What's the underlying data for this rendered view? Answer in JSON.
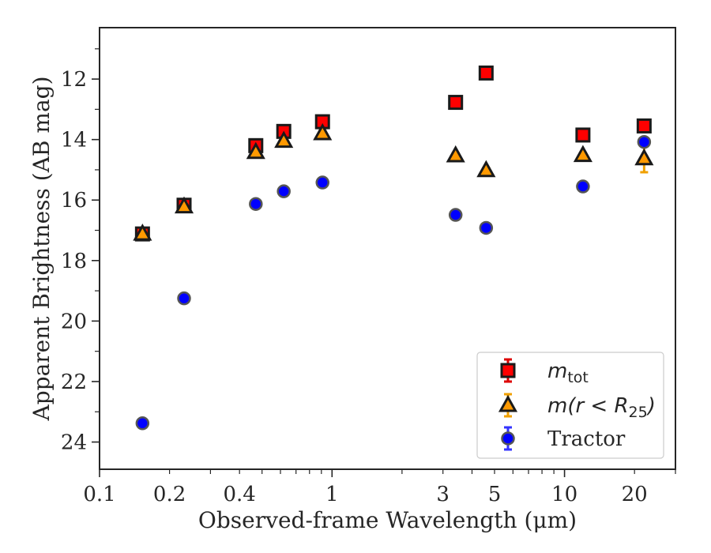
{
  "chart_data": {
    "type": "scatter",
    "title": "",
    "xlabel": "Observed-frame Wavelength (μm)",
    "ylabel": "Apparent Brightness (AB mag)",
    "xscale": "log",
    "yscale": "linear",
    "y_inverted": true,
    "xlim": [
      0.1,
      30
    ],
    "ylim": [
      24.9,
      10.3
    ],
    "xticks": [
      {
        "value": 0.1,
        "label": "0.1"
      },
      {
        "value": 0.2,
        "label": "0.2"
      },
      {
        "value": 0.4,
        "label": "0.4"
      },
      {
        "value": 1,
        "label": "1"
      },
      {
        "value": 3,
        "label": "3"
      },
      {
        "value": 5,
        "label": "5"
      },
      {
        "value": 10,
        "label": "10"
      },
      {
        "value": 20,
        "label": "20"
      }
    ],
    "yticks": [
      {
        "value": 12,
        "label": "12"
      },
      {
        "value": 14,
        "label": "14"
      },
      {
        "value": 16,
        "label": "16"
      },
      {
        "value": 18,
        "label": "18"
      },
      {
        "value": 20,
        "label": "20"
      },
      {
        "value": 22,
        "label": "22"
      },
      {
        "value": 24,
        "label": "24"
      }
    ],
    "grid": false,
    "legend_position": "lower-right",
    "series": [
      {
        "name": "m_tot",
        "legend_main": "m",
        "legend_sub": "tot",
        "marker": "square",
        "color": "#ff0000",
        "errorbar_color": "#dd0000",
        "edge_color": "#1a1a1a",
        "points": [
          {
            "x": 0.153,
            "y": 17.12,
            "err": 0.15
          },
          {
            "x": 0.231,
            "y": 16.17,
            "err": 0.12
          },
          {
            "x": 0.47,
            "y": 14.2,
            "err": 0.1
          },
          {
            "x": 0.62,
            "y": 13.73,
            "err": 0.1
          },
          {
            "x": 0.91,
            "y": 13.41,
            "err": 0.08
          },
          {
            "x": 3.4,
            "y": 12.77,
            "err": 0.08
          },
          {
            "x": 4.6,
            "y": 11.8,
            "err": 0.08
          },
          {
            "x": 12.0,
            "y": 13.85,
            "err": 0.08
          },
          {
            "x": 22.0,
            "y": 13.55,
            "err": 0.08
          }
        ]
      },
      {
        "name": "m(r < R_25)",
        "legend_main": "m(r < R",
        "legend_sub": "25",
        "legend_end": ")",
        "marker": "triangle",
        "color": "#ff9900",
        "errorbar_color": "#f0a000",
        "edge_color": "#1a1a1a",
        "points": [
          {
            "x": 0.153,
            "y": 17.12,
            "err": 0.1
          },
          {
            "x": 0.231,
            "y": 16.22,
            "err": 0.1
          },
          {
            "x": 0.47,
            "y": 14.42,
            "err": 0.08
          },
          {
            "x": 0.62,
            "y": 14.05,
            "err": 0.08
          },
          {
            "x": 0.91,
            "y": 13.8,
            "err": 0.08
          },
          {
            "x": 3.4,
            "y": 14.53,
            "err": 0.08
          },
          {
            "x": 4.6,
            "y": 15.02,
            "err": 0.08
          },
          {
            "x": 12.0,
            "y": 14.52,
            "err": 0.08
          },
          {
            "x": 22.0,
            "y": 14.63,
            "err": 0.45
          }
        ]
      },
      {
        "name": "Tractor",
        "legend_main": "Tractor",
        "marker": "circle",
        "color": "#0000ff",
        "errorbar_color": "#3333ff",
        "edge_color": "#555555",
        "points": [
          {
            "x": 0.153,
            "y": 23.38,
            "err": 0.05
          },
          {
            "x": 0.231,
            "y": 19.25,
            "err": 0.05
          },
          {
            "x": 0.47,
            "y": 16.13,
            "err": 0.05
          },
          {
            "x": 0.62,
            "y": 15.71,
            "err": 0.05
          },
          {
            "x": 0.91,
            "y": 15.42,
            "err": 0.05
          },
          {
            "x": 3.4,
            "y": 16.49,
            "err": 0.05
          },
          {
            "x": 4.6,
            "y": 16.92,
            "err": 0.05
          },
          {
            "x": 12.0,
            "y": 15.55,
            "err": 0.05
          },
          {
            "x": 22.0,
            "y": 14.08,
            "err": 0.05
          }
        ]
      }
    ]
  }
}
